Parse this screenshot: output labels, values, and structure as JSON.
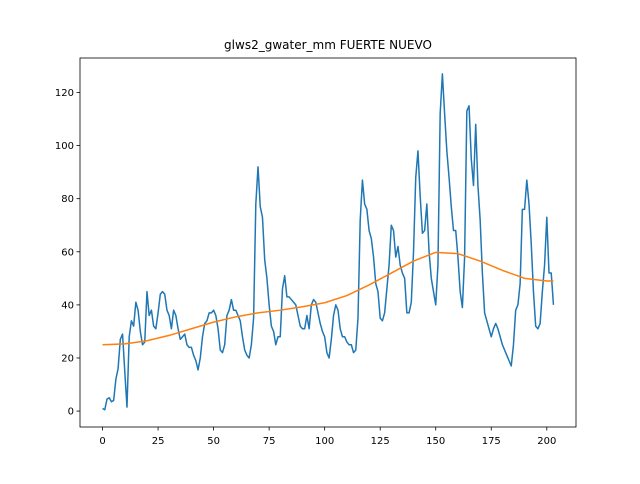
{
  "chart_data": {
    "type": "line",
    "title": "glws2_gwater_mm FUERTE NUEVO",
    "series": [
      {
        "color": "#1f77b4",
        "x": [
          0,
          1,
          2,
          3,
          4,
          5,
          6,
          7,
          8,
          9,
          10,
          11,
          12,
          13,
          14,
          15,
          16,
          17,
          18,
          19,
          20,
          21,
          22,
          23,
          24,
          25,
          26,
          27,
          28,
          29,
          30,
          31,
          32,
          33,
          34,
          35,
          36,
          37,
          38,
          39,
          40,
          41,
          42,
          43,
          44,
          45,
          46,
          47,
          48,
          49,
          50,
          51,
          52,
          53,
          54,
          55,
          56,
          57,
          58,
          59,
          60,
          61,
          62,
          63,
          64,
          65,
          66,
          67,
          68,
          69,
          70,
          71,
          72,
          73,
          74,
          75,
          76,
          77,
          78,
          79,
          80,
          81,
          82,
          83,
          84,
          85,
          86,
          87,
          88,
          89,
          90,
          91,
          92,
          93,
          94,
          95,
          96,
          97,
          98,
          99,
          100,
          101,
          102,
          103,
          104,
          105,
          106,
          107,
          108,
          109,
          110,
          111,
          112,
          113,
          114,
          115,
          116,
          117,
          118,
          119,
          120,
          121,
          122,
          123,
          124,
          125,
          126,
          127,
          128,
          129,
          130,
          131,
          132,
          133,
          134,
          135,
          136,
          137,
          138,
          139,
          140,
          141,
          142,
          143,
          144,
          145,
          146,
          147,
          148,
          149,
          150,
          151,
          152,
          153,
          154,
          155,
          156,
          157,
          158,
          159,
          160,
          161,
          162,
          163,
          164,
          165,
          166,
          167,
          168,
          169,
          170,
          171,
          172,
          173,
          174,
          175,
          176,
          177,
          178,
          179,
          180,
          181,
          182,
          183,
          184,
          185,
          186,
          187,
          188,
          189,
          190,
          191,
          192,
          193,
          194,
          195,
          196,
          197,
          198,
          199,
          200,
          201,
          202,
          203
        ],
        "values": [
          1,
          0.5,
          4.5,
          5,
          3.5,
          4,
          12,
          16,
          27,
          29,
          15,
          1.5,
          28,
          34,
          32,
          41,
          38,
          30,
          25,
          26,
          45,
          36,
          38,
          32,
          31,
          37,
          44,
          45,
          44,
          38,
          36,
          31,
          38,
          36,
          31,
          27,
          28,
          29,
          25,
          24,
          24,
          21,
          19,
          15.5,
          20,
          28,
          33,
          34,
          37,
          37,
          38,
          36,
          31,
          23,
          22,
          25,
          36,
          38,
          42,
          38,
          38,
          36,
          34,
          28,
          23,
          21,
          20,
          25,
          35,
          78,
          92,
          77,
          73,
          57,
          50,
          40,
          32,
          30,
          25,
          28,
          28,
          46,
          51,
          43,
          43,
          42,
          41,
          40,
          36,
          32,
          31,
          31,
          36,
          31,
          40,
          42,
          41,
          37,
          33,
          30,
          28,
          22,
          20,
          27,
          36,
          40,
          38,
          31,
          28,
          28,
          26,
          25,
          25,
          22,
          23,
          35,
          72,
          87,
          78,
          76,
          68,
          65,
          58,
          48,
          45,
          35,
          34,
          37,
          46,
          55,
          70,
          68,
          58,
          62,
          55,
          52,
          50,
          37,
          37,
          41,
          60,
          88,
          98,
          81,
          67,
          68,
          78,
          60,
          50,
          45,
          40,
          55,
          112,
          127,
          112,
          98,
          88,
          77,
          68,
          68,
          58,
          45,
          39,
          58,
          113,
          115,
          95,
          85,
          108,
          85,
          72,
          52,
          37,
          34,
          31,
          28,
          31,
          33,
          31,
          28,
          25,
          23,
          21,
          19,
          17,
          25,
          38,
          40,
          48,
          76,
          76,
          87,
          78,
          63,
          45,
          32,
          31,
          33,
          45,
          55,
          73,
          52,
          52,
          40
        ]
      },
      {
        "color": "#ff7f0e",
        "x": [
          0,
          10,
          20,
          30,
          40,
          50,
          60,
          70,
          80,
          90,
          100,
          110,
          120,
          130,
          140,
          150,
          160,
          170,
          180,
          190,
          200,
          203
        ],
        "values": [
          25,
          25.3,
          26.5,
          28.5,
          31,
          33.5,
          35.5,
          37,
          38,
          39.3,
          40.8,
          43.5,
          47.5,
          52,
          56.5,
          59.8,
          59.3,
          56.5,
          53,
          50,
          49,
          49
        ]
      }
    ],
    "xlim": [
      -10.15,
      213.15
    ],
    "xticks": [
      0,
      25,
      50,
      75,
      100,
      125,
      150,
      175,
      200
    ],
    "ylim": [
      -6,
      133
    ],
    "yticks": [
      0,
      20,
      40,
      60,
      80,
      100,
      120
    ]
  }
}
